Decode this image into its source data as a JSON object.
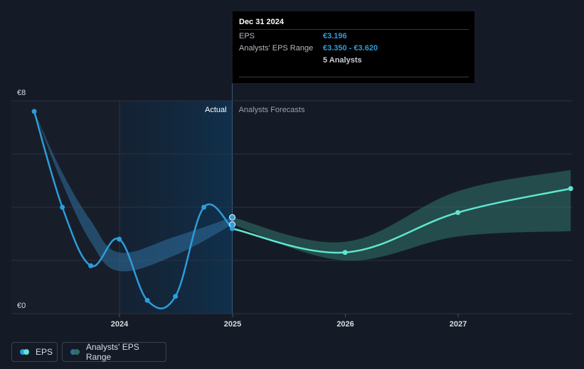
{
  "chart_data": {
    "type": "line",
    "currency": "€",
    "y_axis": {
      "ticks": [
        "€8",
        "€0"
      ],
      "ylim": [
        0,
        8
      ]
    },
    "x_axis": {
      "ticks": [
        "2024",
        "2025",
        "2026",
        "2027"
      ],
      "range": [
        "2023-03-31",
        "2027-12-31"
      ]
    },
    "region_labels": {
      "actual": "Actual",
      "forecast": "Analysts Forecasts"
    },
    "series": [
      {
        "name": "EPS",
        "kind": "actual",
        "color": "#2d9cdb",
        "points": [
          {
            "x": "2023-03-31",
            "y": 7.6
          },
          {
            "x": "2023-06-30",
            "y": 4.0
          },
          {
            "x": "2023-09-30",
            "y": 1.8
          },
          {
            "x": "2023-12-31",
            "y": 2.8
          },
          {
            "x": "2024-03-31",
            "y": 0.5
          },
          {
            "x": "2024-06-30",
            "y": 0.65
          },
          {
            "x": "2024-09-30",
            "y": 4.0
          },
          {
            "x": "2024-12-31",
            "y": 3.196
          }
        ]
      },
      {
        "name": "EPS",
        "kind": "forecast",
        "color": "#5ee6d0",
        "points": [
          {
            "x": "2024-12-31",
            "y": 3.196
          },
          {
            "x": "2025-12-31",
            "y": 2.3
          },
          {
            "x": "2026-12-31",
            "y": 3.8
          },
          {
            "x": "2027-12-31",
            "y": 4.7
          }
        ]
      }
    ],
    "ranges": [
      {
        "name": "Analysts' EPS Range",
        "kind": "past",
        "color": "#2f6f9e",
        "points": [
          {
            "x": "2023-03-31",
            "low": 7.6,
            "high": 7.6
          },
          {
            "x": "2023-06-30",
            "low": 4.9,
            "high": 5.3
          },
          {
            "x": "2023-09-30",
            "low": 2.7,
            "high": 3.5
          },
          {
            "x": "2023-12-31",
            "low": 1.6,
            "high": 2.3
          },
          {
            "x": "2024-06-30",
            "low": 2.2,
            "high": 2.9
          },
          {
            "x": "2024-12-31",
            "low": 3.35,
            "high": 3.62
          }
        ]
      },
      {
        "name": "Analysts' EPS Range",
        "kind": "forecast",
        "color": "#2e6e66",
        "points": [
          {
            "x": "2024-12-31",
            "low": 3.35,
            "high": 3.62
          },
          {
            "x": "2025-12-31",
            "low": 2.0,
            "high": 2.7
          },
          {
            "x": "2026-12-31",
            "low": 2.9,
            "high": 4.6
          },
          {
            "x": "2027-12-31",
            "low": 3.1,
            "high": 5.4
          }
        ]
      }
    ],
    "highlight": {
      "x": "2024-12-31",
      "eps": 3.196,
      "range_low": 3.35,
      "range_high": 3.62
    }
  },
  "tooltip": {
    "date": "Dec 31 2024",
    "eps_label": "EPS",
    "eps_value": "€3.196",
    "range_label": "Analysts' EPS Range",
    "range_value": "€3.350 - €3.620",
    "analysts": "5 Analysts"
  },
  "legend": {
    "eps_label": "EPS",
    "range_label": "Analysts' EPS Range",
    "eps_colors": [
      "#2d9cdb",
      "#5ee6d0"
    ],
    "range_colors": [
      "#2f6f9e",
      "#2e6e66"
    ]
  }
}
